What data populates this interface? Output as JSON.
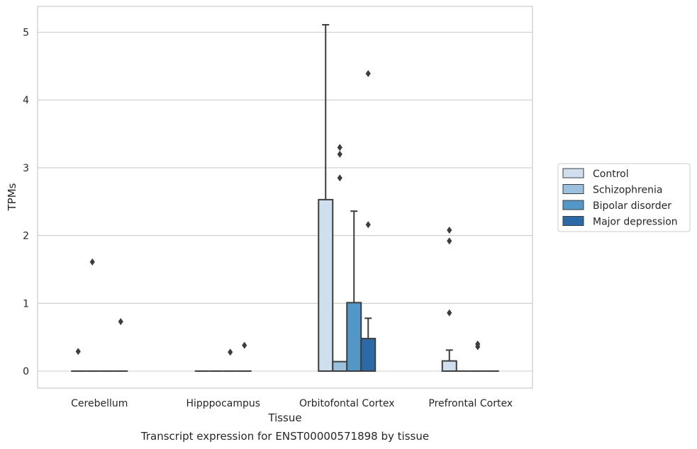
{
  "chart_data": {
    "type": "box",
    "title": "",
    "caption": "Transcript expression for ENST00000571898 by tissue",
    "xlabel": "Tissue",
    "ylabel": "TPMs",
    "ylim": [
      -0.25,
      5.37
    ],
    "yticks": [
      0,
      1,
      2,
      3,
      4,
      5
    ],
    "grid": "horizontal",
    "legend_position": "right",
    "categories": [
      "Cerebellum",
      "Hipppocampus",
      "Orbitofontal Cortex",
      "Prefrontal Cortex"
    ],
    "series": [
      {
        "name": "Control",
        "color": "#cfdfee",
        "boxes": [
          {
            "q1": 0,
            "median": 0,
            "q3": 0,
            "whisker_low": 0,
            "whisker_high": 0,
            "outliers": [
              0.29
            ]
          },
          {
            "q1": 0,
            "median": 0,
            "q3": 0,
            "whisker_low": 0,
            "whisker_high": 0,
            "outliers": []
          },
          {
            "q1": 0,
            "median": 0,
            "q3": 2.53,
            "whisker_low": 0,
            "whisker_high": 5.11,
            "outliers": []
          },
          {
            "q1": 0,
            "median": 0,
            "q3": 0.15,
            "whisker_low": 0,
            "whisker_high": 0.31,
            "outliers": [
              2.08,
              1.92,
              0.86
            ]
          }
        ]
      },
      {
        "name": "Schizophrenia",
        "color": "#9bc1df",
        "boxes": [
          {
            "q1": 0,
            "median": 0,
            "q3": 0,
            "whisker_low": 0,
            "whisker_high": 0,
            "outliers": [
              1.61
            ]
          },
          {
            "q1": 0,
            "median": 0,
            "q3": 0,
            "whisker_low": 0,
            "whisker_high": 0,
            "outliers": []
          },
          {
            "q1": 0,
            "median": 0,
            "q3": 0.14,
            "whisker_low": 0,
            "whisker_high": 0.14,
            "outliers": [
              3.3,
              3.2,
              2.85
            ]
          },
          {
            "q1": 0,
            "median": 0,
            "q3": 0,
            "whisker_low": 0,
            "whisker_high": 0,
            "outliers": []
          }
        ]
      },
      {
        "name": "Bipolar disorder",
        "color": "#5297c8",
        "boxes": [
          {
            "q1": 0,
            "median": 0,
            "q3": 0,
            "whisker_low": 0,
            "whisker_high": 0,
            "outliers": []
          },
          {
            "q1": 0,
            "median": 0,
            "q3": 0,
            "whisker_low": 0,
            "whisker_high": 0,
            "outliers": [
              0.28
            ]
          },
          {
            "q1": 0,
            "median": 0,
            "q3": 1.01,
            "whisker_low": 0,
            "whisker_high": 2.36,
            "outliers": []
          },
          {
            "q1": 0,
            "median": 0,
            "q3": 0,
            "whisker_low": 0,
            "whisker_high": 0,
            "outliers": [
              0.4,
              0.36
            ]
          }
        ]
      },
      {
        "name": "Major depression",
        "color": "#2b69a7",
        "boxes": [
          {
            "q1": 0,
            "median": 0,
            "q3": 0,
            "whisker_low": 0,
            "whisker_high": 0,
            "outliers": [
              0.73
            ]
          },
          {
            "q1": 0,
            "median": 0,
            "q3": 0,
            "whisker_low": 0,
            "whisker_high": 0,
            "outliers": [
              0.38
            ]
          },
          {
            "q1": 0,
            "median": 0,
            "q3": 0.48,
            "whisker_low": 0,
            "whisker_high": 0.78,
            "outliers": [
              4.39,
              2.16
            ]
          },
          {
            "q1": 0,
            "median": 0,
            "q3": 0,
            "whisker_low": 0,
            "whisker_high": 0,
            "outliers": []
          }
        ]
      }
    ]
  }
}
